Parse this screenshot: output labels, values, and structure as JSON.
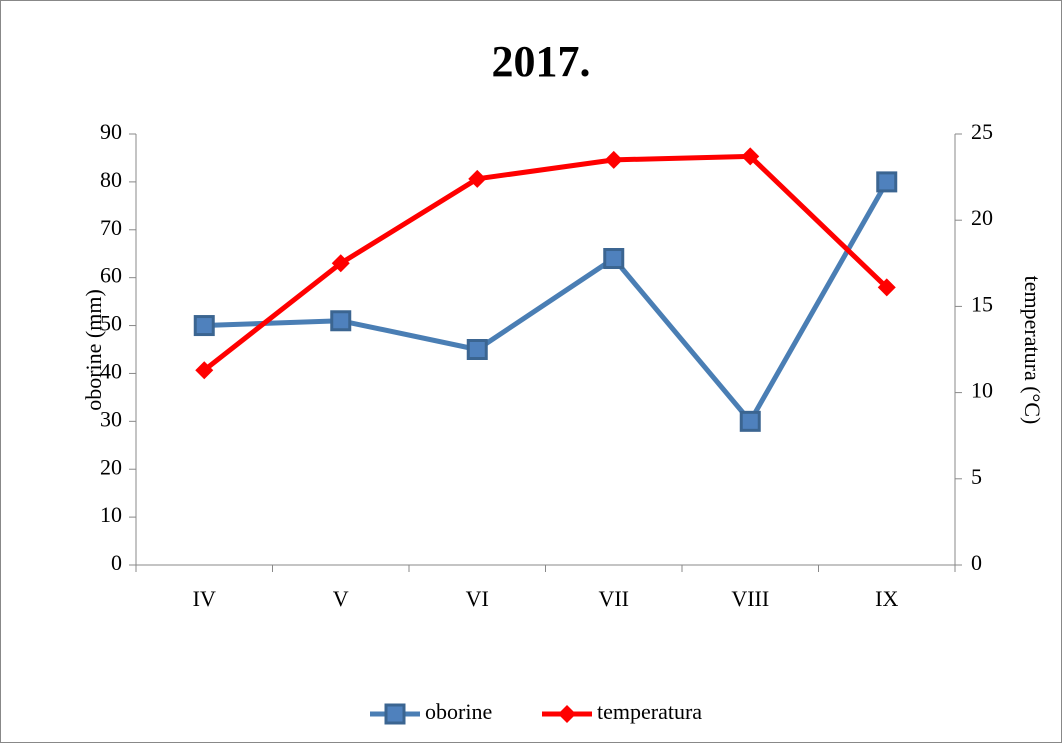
{
  "chart_data": {
    "type": "line",
    "title": "2017.",
    "y_label": "oborine (mm)",
    "y2_label": "temperatura (°C)",
    "categories": [
      "IV",
      "V",
      "VI",
      "VII",
      "VIII",
      "IX"
    ],
    "series": [
      {
        "name": "oborine",
        "color": "#4a7eb4",
        "marker": "square",
        "values": [
          50,
          51,
          45,
          64,
          30,
          80
        ]
      },
      {
        "name": "temperatura",
        "color": "#ff0000",
        "marker": "diamond",
        "axis": "y2",
        "values": [
          11.3,
          17.5,
          22.4,
          23.5,
          23.7,
          16.1
        ]
      }
    ],
    "ylim": [
      0,
      90
    ],
    "yticks": [
      0,
      10,
      20,
      30,
      40,
      50,
      60,
      70,
      80,
      90
    ],
    "y2lim": [
      0,
      25
    ],
    "y2ticks": [
      0,
      5,
      10,
      15,
      20,
      25
    ],
    "grid": false,
    "legend": "bottom"
  }
}
